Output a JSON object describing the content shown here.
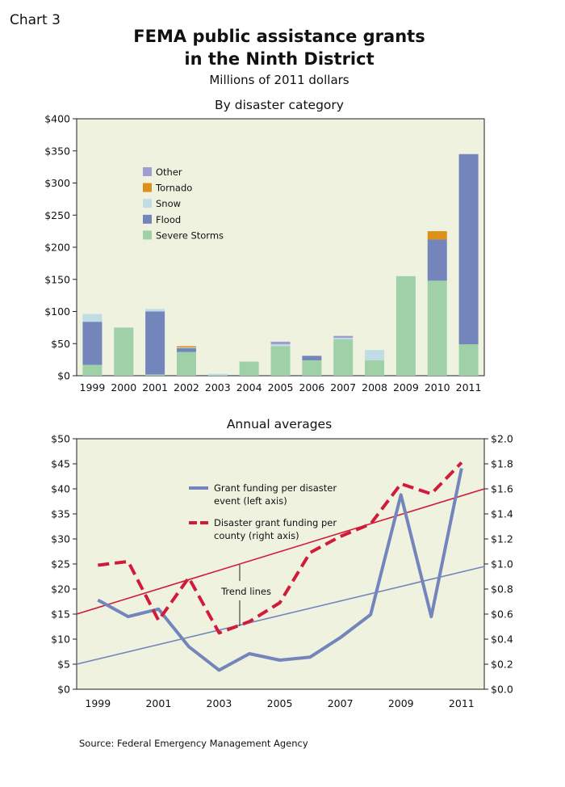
{
  "header": {
    "chart_label": "Chart 3",
    "title_line1": "FEMA public assistance grants",
    "title_line2": "in the Ninth District",
    "subtitle": "Millions of 2011 dollars"
  },
  "source": "Source: Federal Emergency Management Agency",
  "colors": {
    "background": "#eef2df",
    "Severe Storms": "#9fd0a8",
    "Flood": "#7385bb",
    "Snow": "#c0dde4",
    "Tornado": "#da901b",
    "Other": "#9e9ed0",
    "grant_line": "#7385bb",
    "county_line": "#d11b3a",
    "trend_per_disaster": "#7385bb",
    "trend_per_county": "#d11b3a"
  },
  "chart_data": [
    {
      "type": "bar",
      "stacked": true,
      "title": "By disaster category",
      "categories": [
        "1999",
        "2000",
        "2001",
        "2002",
        "2003",
        "2004",
        "2005",
        "2006",
        "2007",
        "2008",
        "2009",
        "2010",
        "2011"
      ],
      "series": [
        {
          "name": "Severe Storms",
          "values": [
            17,
            75,
            2,
            37,
            1,
            22,
            46,
            24,
            57,
            24,
            155,
            148,
            49
          ]
        },
        {
          "name": "Flood",
          "values": [
            67,
            0,
            98,
            6,
            0,
            0,
            0,
            7,
            0,
            0,
            0,
            64,
            296
          ]
        },
        {
          "name": "Snow",
          "values": [
            12,
            0,
            4,
            1,
            2,
            0,
            3,
            0,
            2,
            16,
            0,
            0,
            0
          ]
        },
        {
          "name": "Tornado",
          "values": [
            0,
            0,
            0,
            2,
            0,
            0,
            0,
            0,
            0,
            0,
            0,
            13,
            0
          ]
        },
        {
          "name": "Other",
          "values": [
            0,
            0,
            0,
            0,
            0,
            0,
            4,
            0,
            3,
            0,
            0,
            0,
            0
          ]
        }
      ],
      "legend_order": [
        "Other",
        "Tornado",
        "Snow",
        "Flood",
        "Severe Storms"
      ],
      "legend_position": "upper-left",
      "ylim": [
        0,
        400
      ],
      "yticks": [
        0,
        50,
        100,
        150,
        200,
        250,
        300,
        350,
        400
      ],
      "ytick_labels": [
        "$0",
        "$50",
        "$100",
        "$150",
        "$200",
        "$250",
        "$300",
        "$350",
        "$400"
      ],
      "xlabel": "",
      "ylabel": "",
      "grid": false
    },
    {
      "type": "line",
      "title": "Annual averages",
      "x": [
        1999,
        2000,
        2001,
        2002,
        2003,
        2004,
        2005,
        2006,
        2007,
        2008,
        2009,
        2010,
        2011
      ],
      "xtick_labels": [
        "1999",
        "2001",
        "2003",
        "2005",
        "2007",
        "2009",
        "2011"
      ],
      "xticks": [
        1999,
        2001,
        2003,
        2005,
        2007,
        2009,
        2011
      ],
      "xlim": [
        1998.3,
        2011.75
      ],
      "series": [
        {
          "name": "Grant funding per disaster event (left axis)",
          "axis": "left",
          "style": "solid",
          "values": [
            17.8,
            14.5,
            16.0,
            8.5,
            3.8,
            7.1,
            5.8,
            6.4,
            10.3,
            14.9,
            38.8,
            14.5,
            44.1
          ]
        },
        {
          "name": "Disaster grant funding per county (right axis)",
          "axis": "right",
          "style": "dashed",
          "values": [
            0.99,
            1.02,
            0.55,
            0.89,
            0.45,
            0.54,
            0.69,
            1.09,
            1.22,
            1.32,
            1.64,
            1.56,
            1.81
          ]
        }
      ],
      "trend_lines": [
        {
          "series": "Grant funding per disaster event (left axis)",
          "axis": "left",
          "start": [
            1998.3,
            5.0
          ],
          "end": [
            2011.75,
            24.5
          ]
        },
        {
          "series": "Disaster grant funding per county (right axis)",
          "axis": "right",
          "start": [
            1998.3,
            0.6
          ],
          "end": [
            2011.75,
            1.6
          ]
        }
      ],
      "annotation": "Trend lines",
      "legend_position": "upper-center",
      "left_axis": {
        "ylim": [
          0,
          50
        ],
        "ticks": [
          0,
          5,
          10,
          15,
          20,
          25,
          30,
          35,
          40,
          45,
          50
        ],
        "tick_labels": [
          "$0",
          "$5",
          "$10",
          "$15",
          "$20",
          "$25",
          "$30",
          "$35",
          "$40",
          "$45",
          "$50"
        ]
      },
      "right_axis": {
        "ylim": [
          0,
          2.0
        ],
        "ticks": [
          0,
          0.2,
          0.4,
          0.6,
          0.8,
          1.0,
          1.2,
          1.4,
          1.6,
          1.8,
          2.0
        ],
        "tick_labels": [
          "$0.0",
          "$0.2",
          "$0.4",
          "$0.6",
          "$0.8",
          "$1.0",
          "$1.2",
          "$1.4",
          "$1.6",
          "$1.8",
          "$2.0"
        ]
      },
      "grid": false
    }
  ]
}
